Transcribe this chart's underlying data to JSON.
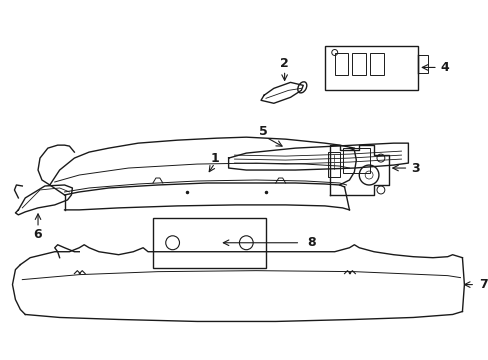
{
  "background_color": "#ffffff",
  "line_color": "#1a1a1a",
  "fig_width": 4.89,
  "fig_height": 3.6,
  "dpi": 100,
  "part1_label": "1",
  "part2_label": "2",
  "part3_label": "3",
  "part4_label": "4",
  "part5_label": "5",
  "part6_label": "6",
  "part7_label": "7",
  "part8_label": "8"
}
